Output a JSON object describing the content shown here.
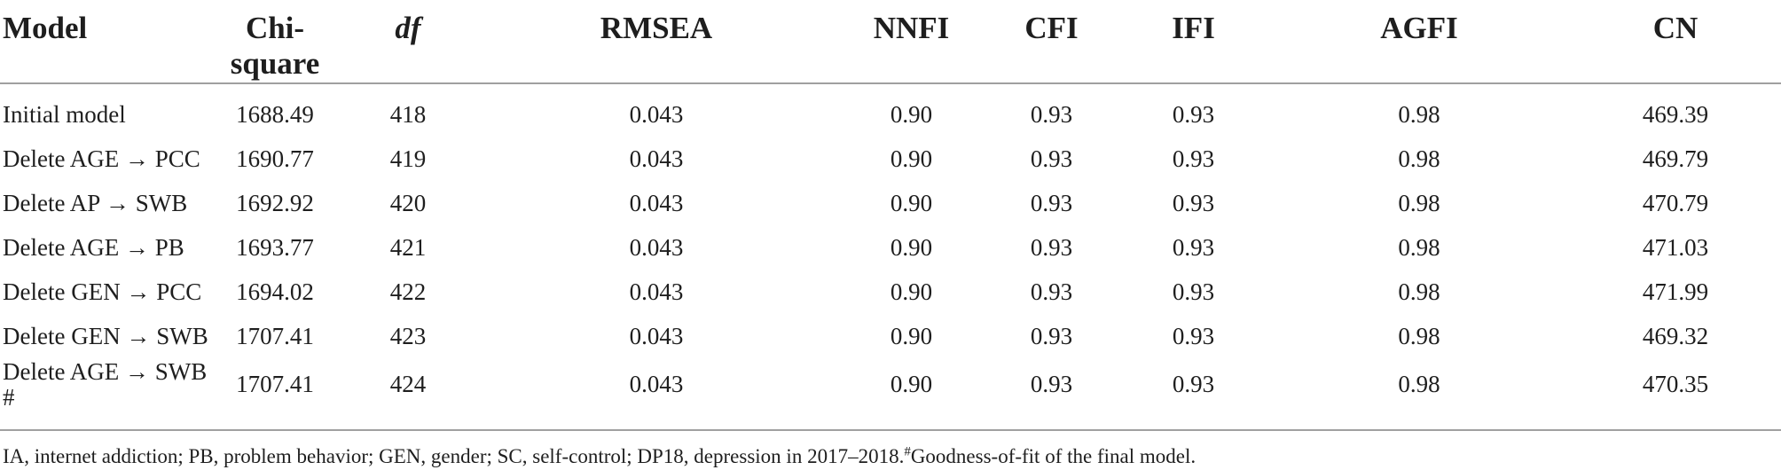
{
  "table": {
    "columns": [
      {
        "label": "Model"
      },
      {
        "label": "Chi-square"
      },
      {
        "label": "df"
      },
      {
        "label": "RMSEA"
      },
      {
        "label": "NNFI"
      },
      {
        "label": "CFI"
      },
      {
        "label": "IFI"
      },
      {
        "label": "AGFI"
      },
      {
        "label": "CN"
      }
    ],
    "rows": [
      {
        "cells": [
          "Initial model",
          "1688.49",
          "418",
          "0.043",
          "0.90",
          "0.93",
          "0.93",
          "0.98",
          "469.39"
        ]
      },
      {
        "cells": [
          "Delete AGE → PCC",
          "1690.77",
          "419",
          "0.043",
          "0.90",
          "0.93",
          "0.93",
          "0.98",
          "469.79"
        ]
      },
      {
        "cells": [
          "Delete AP → SWB",
          "1692.92",
          "420",
          "0.043",
          "0.90",
          "0.93",
          "0.93",
          "0.98",
          "470.79"
        ]
      },
      {
        "cells": [
          "Delete AGE → PB",
          "1693.77",
          "421",
          "0.043",
          "0.90",
          "0.93",
          "0.93",
          "0.98",
          "471.03"
        ]
      },
      {
        "cells": [
          "Delete GEN → PCC",
          "1694.02",
          "422",
          "0.043",
          "0.90",
          "0.93",
          "0.93",
          "0.98",
          "471.99"
        ]
      },
      {
        "cells": [
          "Delete GEN → SWB",
          "1707.41",
          "423",
          "0.043",
          "0.90",
          "0.93",
          "0.93",
          "0.98",
          "469.32"
        ]
      },
      {
        "cells": [
          "Delete AGE → SWB #",
          "1707.41",
          "424",
          "0.043",
          "0.90",
          "0.93",
          "0.93",
          "0.98",
          "470.35"
        ]
      }
    ]
  },
  "footnote": {
    "abbreviations": "IA, internet addiction; PB, problem behavior; GEN, gender; SC, self-control; DP18, depression in 2017–2018.",
    "marker": "#",
    "note": "Goodness-of-fit of the final model."
  },
  "colors": {
    "rule": "#a0a0a0",
    "text": "#1e1e1e"
  }
}
